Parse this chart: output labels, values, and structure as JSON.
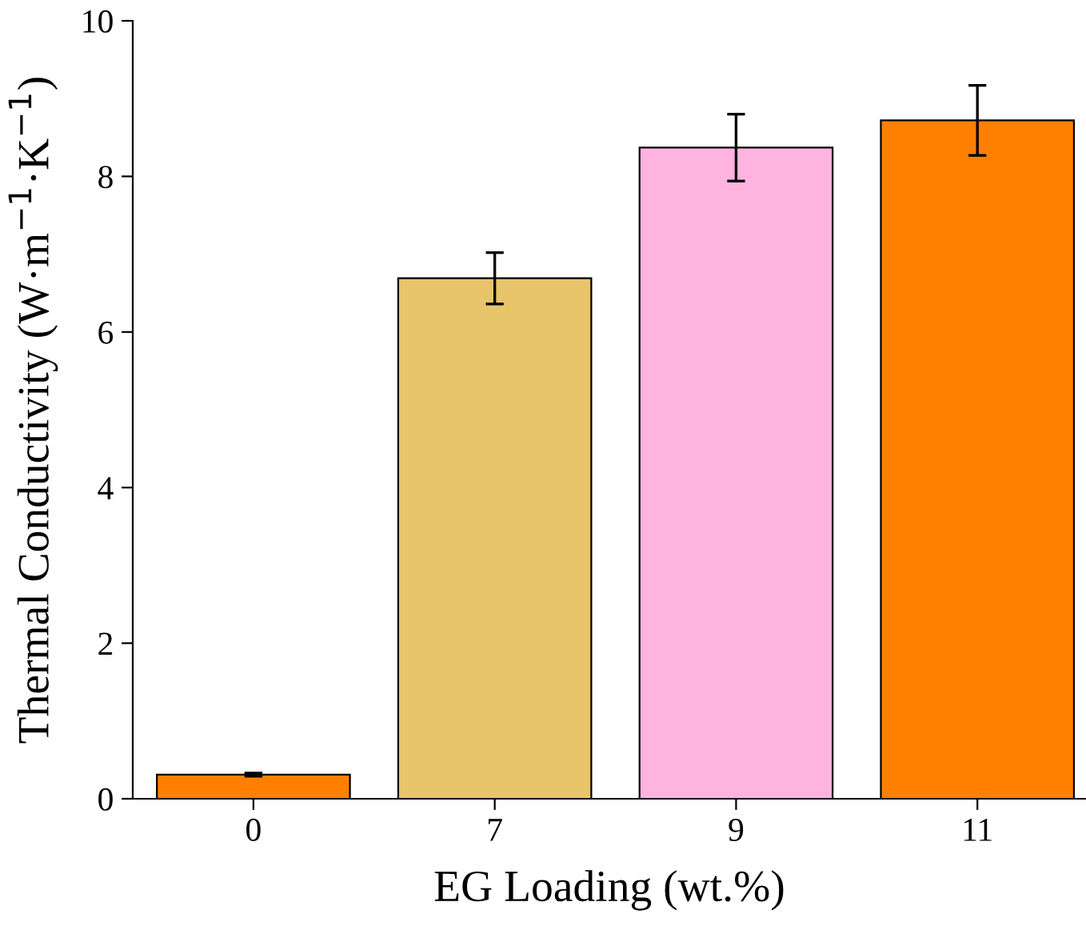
{
  "chart_data": {
    "type": "bar",
    "xlabel": "EG Loading (wt.%)",
    "ylabel": "Thermal Conductivity (W·m$^{−1}$·K$^{−1}$)",
    "categories": [
      "0",
      "7",
      "9",
      "11"
    ],
    "values": [
      0.31,
      6.69,
      8.37,
      8.72
    ],
    "errors": [
      0.02,
      0.33,
      0.43,
      0.45
    ],
    "colors": [
      "#ff8000",
      "#e8c46a",
      "#ffb3de",
      "#ff8000"
    ],
    "ylim": [
      0,
      10
    ],
    "yticks": [
      0,
      2,
      4,
      6,
      8,
      10
    ],
    "grid": false,
    "legend": false
  }
}
